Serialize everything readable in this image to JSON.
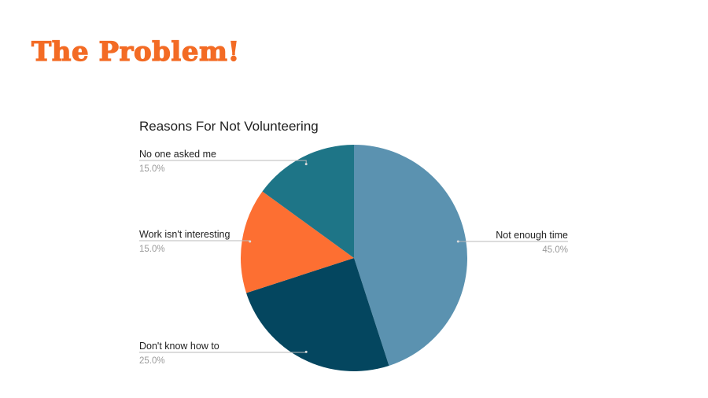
{
  "slide": {
    "title": "The Problem!"
  },
  "chart_data": {
    "type": "pie",
    "title": "Reasons For Not Volunteering",
    "start_angle_deg": 0,
    "direction": "clockwise",
    "slices": [
      {
        "label": "Not enough time",
        "value": 45.0,
        "pct_label": "45.0%",
        "color": "#5b92b0"
      },
      {
        "label": "Don't know how to",
        "value": 25.0,
        "pct_label": "25.0%",
        "color": "#04465f"
      },
      {
        "label": "Work isn't interesting",
        "value": 15.0,
        "pct_label": "15.0%",
        "color": "#fd6f32"
      },
      {
        "label": "No one asked me",
        "value": 15.0,
        "pct_label": "15.0%",
        "color": "#1e7587"
      }
    ],
    "legend": "leader-line labels beside slices",
    "label_color": "#222222",
    "pct_color": "#9a9a9a",
    "leader_color": "#b8b8b8"
  }
}
